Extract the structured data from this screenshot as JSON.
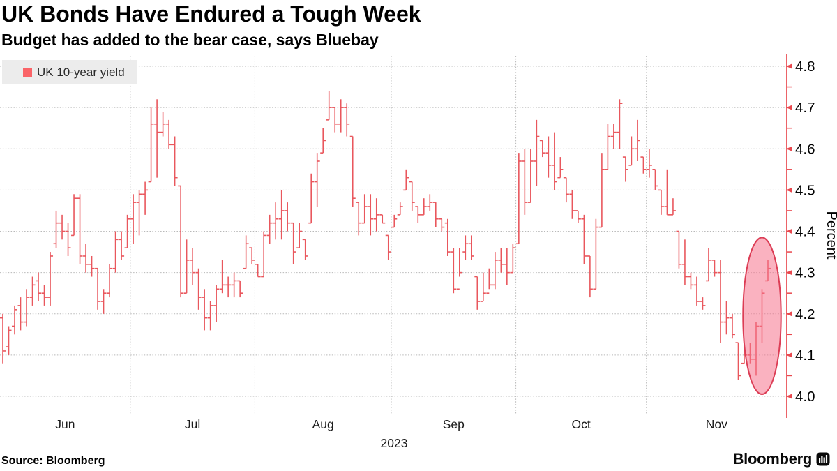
{
  "header": {
    "title": "UK Bonds Have Endured a Tough Week",
    "subtitle": "Budget has added to the bear case, says Bluebay"
  },
  "legend": {
    "label": "UK 10-year yield",
    "swatch_color": "#fa6468"
  },
  "footer": {
    "source": "Source: Bloomberg",
    "brand": "Bloomberg",
    "brand_icon": "bloomberg-chart-icon"
  },
  "colors": {
    "bar": "#e9575d",
    "axis": "#e8484e",
    "grid": "#b8b8b8",
    "tick_label": "#000000",
    "month_label": "#1a1a1a",
    "highlight_fill": "rgba(246,114,140,0.55)",
    "highlight_stroke": "#dc3d55",
    "legend_bg": "#ececec"
  },
  "chart_data": {
    "type": "ohlc-bar",
    "series_name": "UK 10-year yield",
    "title": "UK Bonds Have Endured a Tough Week",
    "subtitle": "Budget has added to the bear case, says Bluebay",
    "ylabel": "Percent",
    "ylim": [
      4.0,
      4.8
    ],
    "y_major_step": 0.1,
    "y_minor_step": 0.05,
    "y_tick_labels": [
      "4.0",
      "4.1",
      "4.2",
      "4.3",
      "4.4",
      "4.5",
      "4.6",
      "4.7",
      "4.8"
    ],
    "x_year_label": "2023",
    "grid": true,
    "legend_position": "top-left",
    "months": [
      {
        "label": "Jun",
        "start_index": 0
      },
      {
        "label": "Jul",
        "start_index": 22
      },
      {
        "label": "Aug",
        "start_index": 43
      },
      {
        "label": "Sep",
        "start_index": 66
      },
      {
        "label": "Oct",
        "start_index": 87
      },
      {
        "label": "Nov",
        "start_index": 109
      }
    ],
    "bars_format": [
      "high",
      "low",
      "open",
      "close"
    ],
    "bars": [
      [
        4.2,
        4.08,
        4.19,
        4.11
      ],
      [
        4.17,
        4.1,
        4.12,
        4.16
      ],
      [
        4.22,
        4.15,
        4.17,
        4.21
      ],
      [
        4.24,
        4.16,
        4.22,
        4.18
      ],
      [
        4.26,
        4.17,
        4.18,
        4.24
      ],
      [
        4.29,
        4.22,
        4.24,
        4.27
      ],
      [
        4.3,
        4.23,
        4.28,
        4.25
      ],
      [
        4.27,
        4.22,
        4.25,
        4.24
      ],
      [
        4.35,
        4.22,
        4.24,
        4.34
      ],
      [
        4.45,
        4.36,
        4.37,
        4.42
      ],
      [
        4.44,
        4.38,
        4.42,
        4.4
      ],
      [
        4.42,
        4.34,
        4.4,
        4.36
      ],
      [
        4.49,
        4.39,
        4.39,
        4.48
      ],
      [
        4.49,
        4.32,
        4.48,
        4.34
      ],
      [
        4.37,
        4.3,
        4.34,
        4.32
      ],
      [
        4.34,
        4.29,
        4.32,
        4.31
      ],
      [
        4.31,
        4.21,
        4.31,
        4.23
      ],
      [
        4.26,
        4.2,
        4.23,
        4.25
      ],
      [
        4.32,
        4.24,
        4.25,
        4.31
      ],
      [
        4.4,
        4.3,
        4.31,
        4.38
      ],
      [
        4.4,
        4.33,
        4.38,
        4.34
      ],
      [
        4.44,
        4.36,
        4.36,
        4.43
      ],
      [
        4.49,
        4.37,
        4.43,
        4.47
      ],
      [
        4.5,
        4.39,
        4.47,
        4.49
      ],
      [
        4.52,
        4.44,
        4.49,
        4.5
      ],
      [
        4.7,
        4.52,
        4.52,
        4.66
      ],
      [
        4.72,
        4.53,
        4.66,
        4.64
      ],
      [
        4.69,
        4.63,
        4.64,
        4.66
      ],
      [
        4.67,
        4.6,
        4.66,
        4.61
      ],
      [
        4.63,
        4.51,
        4.61,
        4.53
      ],
      [
        4.51,
        4.24,
        4.51,
        4.25
      ],
      [
        4.38,
        4.25,
        4.25,
        4.33
      ],
      [
        4.36,
        4.27,
        4.33,
        4.3
      ],
      [
        4.31,
        4.21,
        4.3,
        4.24
      ],
      [
        4.26,
        4.16,
        4.24,
        4.19
      ],
      [
        4.23,
        4.16,
        4.19,
        4.22
      ],
      [
        4.27,
        4.18,
        4.22,
        4.26
      ],
      [
        4.33,
        4.25,
        4.26,
        4.27
      ],
      [
        4.29,
        4.24,
        4.27,
        4.27
      ],
      [
        4.3,
        4.24,
        4.27,
        4.28
      ],
      [
        4.28,
        4.24,
        4.28,
        4.25
      ],
      [
        4.39,
        4.31,
        4.31,
        4.37
      ],
      [
        4.36,
        4.32,
        4.36,
        4.33
      ],
      [
        4.32,
        4.29,
        4.32,
        4.29
      ],
      [
        4.4,
        4.29,
        4.29,
        4.39
      ],
      [
        4.44,
        4.37,
        4.39,
        4.42
      ],
      [
        4.47,
        4.38,
        4.42,
        4.43
      ],
      [
        4.5,
        4.38,
        4.43,
        4.45
      ],
      [
        4.47,
        4.4,
        4.45,
        4.42
      ],
      [
        4.42,
        4.32,
        4.42,
        4.35
      ],
      [
        4.42,
        4.36,
        4.36,
        4.4
      ],
      [
        4.38,
        4.33,
        4.38,
        4.34
      ],
      [
        4.54,
        4.42,
        4.42,
        4.52
      ],
      [
        4.59,
        4.46,
        4.52,
        4.57
      ],
      [
        4.65,
        4.59,
        4.59,
        4.62
      ],
      [
        4.74,
        4.67,
        4.67,
        4.7
      ],
      [
        4.7,
        4.64,
        4.7,
        4.66
      ],
      [
        4.72,
        4.64,
        4.66,
        4.7
      ],
      [
        4.71,
        4.63,
        4.7,
        4.66
      ],
      [
        4.63,
        4.46,
        4.63,
        4.48
      ],
      [
        4.47,
        4.39,
        4.47,
        4.42
      ],
      [
        4.49,
        4.42,
        4.42,
        4.46
      ],
      [
        4.49,
        4.39,
        4.46,
        4.43
      ],
      [
        4.48,
        4.4,
        4.43,
        4.44
      ],
      [
        4.44,
        4.42,
        4.44,
        4.42
      ],
      [
        4.39,
        4.33,
        4.39,
        4.35
      ],
      [
        4.44,
        4.41,
        4.41,
        4.43
      ],
      [
        4.47,
        4.44,
        4.44,
        4.46
      ],
      [
        4.55,
        4.5,
        4.5,
        4.53
      ],
      [
        4.52,
        4.45,
        4.52,
        4.47
      ],
      [
        4.46,
        4.42,
        4.46,
        4.44
      ],
      [
        4.48,
        4.44,
        4.44,
        4.46
      ],
      [
        4.49,
        4.45,
        4.46,
        4.47
      ],
      [
        4.47,
        4.41,
        4.47,
        4.43
      ],
      [
        4.43,
        4.4,
        4.43,
        4.41
      ],
      [
        4.43,
        4.34,
        4.42,
        4.35
      ],
      [
        4.36,
        4.25,
        4.35,
        4.26
      ],
      [
        4.36,
        4.29,
        4.26,
        4.3
      ],
      [
        4.39,
        4.33,
        4.35,
        4.37
      ],
      [
        4.39,
        4.33,
        4.37,
        4.34
      ],
      [
        4.29,
        4.21,
        4.29,
        4.23
      ],
      [
        4.3,
        4.23,
        4.23,
        4.25
      ],
      [
        4.31,
        4.26,
        4.25,
        4.27
      ],
      [
        4.35,
        4.26,
        4.27,
        4.33
      ],
      [
        4.36,
        4.3,
        4.33,
        4.32
      ],
      [
        4.36,
        4.27,
        4.32,
        4.3
      ],
      [
        4.37,
        4.3,
        4.3,
        4.36
      ],
      [
        4.59,
        4.37,
        4.37,
        4.57
      ],
      [
        4.6,
        4.44,
        4.57,
        4.47
      ],
      [
        4.6,
        4.47,
        4.47,
        4.57
      ],
      [
        4.67,
        4.51,
        4.57,
        4.63
      ],
      [
        4.62,
        4.58,
        4.62,
        4.59
      ],
      [
        4.63,
        4.53,
        4.59,
        4.56
      ],
      [
        4.64,
        4.5,
        4.56,
        4.52
      ],
      [
        4.58,
        4.53,
        4.53,
        4.55
      ],
      [
        4.53,
        4.47,
        4.53,
        4.49
      ],
      [
        4.5,
        4.43,
        4.49,
        4.45
      ],
      [
        4.45,
        4.42,
        4.45,
        4.43
      ],
      [
        4.44,
        4.32,
        4.43,
        4.34
      ],
      [
        4.34,
        4.24,
        4.34,
        4.26
      ],
      [
        4.43,
        4.26,
        4.26,
        4.41
      ],
      [
        4.59,
        4.41,
        4.41,
        4.55
      ],
      [
        4.66,
        4.55,
        4.55,
        4.63
      ],
      [
        4.66,
        4.6,
        4.63,
        4.64
      ],
      [
        4.72,
        4.6,
        4.64,
        4.71
      ],
      [
        4.58,
        4.52,
        4.58,
        4.55
      ],
      [
        4.63,
        4.56,
        4.56,
        4.6
      ],
      [
        4.67,
        4.57,
        4.6,
        4.62
      ],
      [
        4.58,
        4.54,
        4.58,
        4.55
      ],
      [
        4.6,
        4.53,
        4.55,
        4.56
      ],
      [
        4.55,
        4.5,
        4.55,
        4.51
      ],
      [
        4.5,
        4.44,
        4.5,
        4.46
      ],
      [
        4.55,
        4.44,
        4.46,
        4.44
      ],
      [
        4.48,
        4.44,
        4.44,
        4.45
      ],
      [
        4.4,
        4.31,
        4.4,
        4.32
      ],
      [
        4.38,
        4.27,
        4.32,
        4.29
      ],
      [
        4.3,
        4.26,
        4.29,
        4.27
      ],
      [
        4.29,
        4.22,
        4.27,
        4.23
      ],
      [
        4.24,
        4.21,
        4.23,
        4.22
      ],
      [
        4.36,
        4.28,
        4.28,
        4.33
      ],
      [
        4.33,
        4.29,
        4.33,
        4.3
      ],
      [
        4.33,
        4.13,
        4.3,
        4.18
      ],
      [
        4.23,
        4.15,
        4.18,
        4.19
      ],
      [
        4.2,
        4.14,
        4.19,
        4.15
      ],
      [
        4.13,
        4.04,
        4.13,
        4.05
      ],
      [
        4.12,
        4.08,
        4.08,
        4.1
      ],
      [
        4.13,
        4.08,
        4.1,
        4.09
      ],
      [
        4.18,
        4.05,
        4.09,
        4.17
      ],
      [
        4.26,
        4.13,
        4.17,
        4.25
      ],
      [
        4.33,
        4.28,
        4.28,
        4.31
      ]
    ],
    "highlight_ellipse": {
      "center_index": 128,
      "center_value": 4.195,
      "radius_bars": 3.2,
      "radius_value": 0.19
    }
  }
}
